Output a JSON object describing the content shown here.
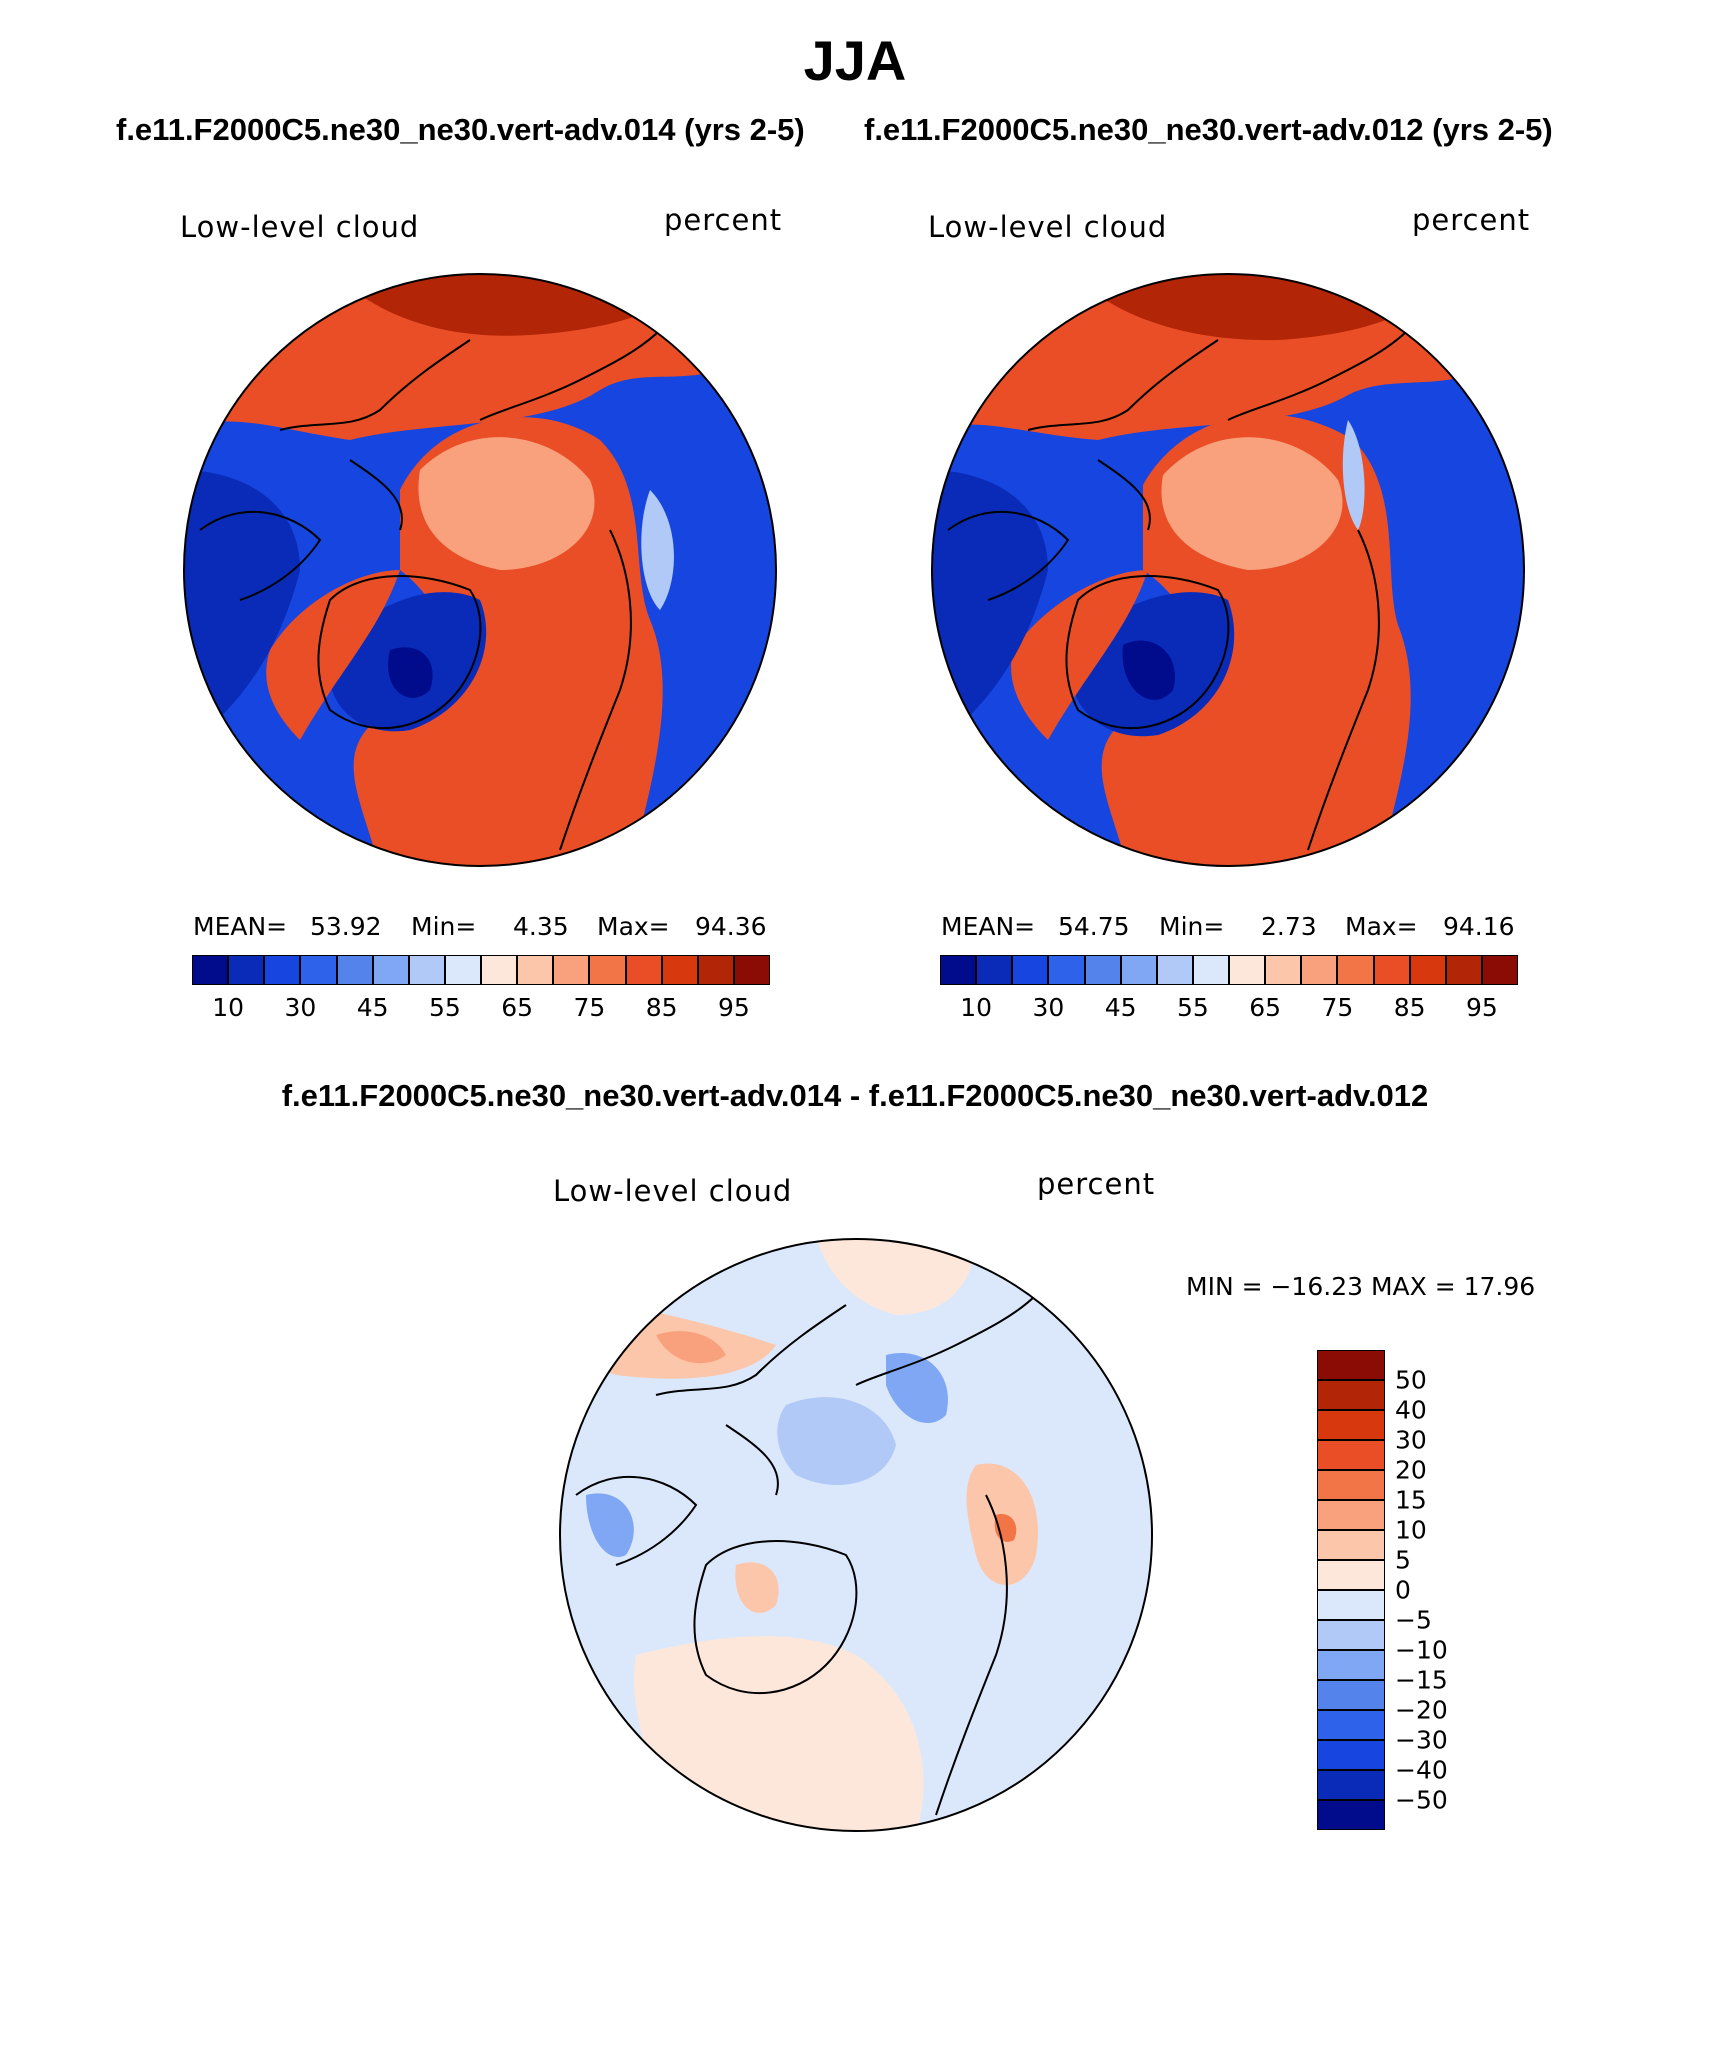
{
  "figure": {
    "season": "JJA",
    "panel_header_left": "f.e11.F2000C5.ne30_ne30.vert-adv.014 (yrs 2-5)",
    "panel_header_right": "f.e11.F2000C5.ne30_ne30.vert-adv.012 (yrs 2-5)",
    "diff_header": "f.e11.F2000C5.ne30_ne30.vert-adv.014 - f.e11.F2000C5.ne30_ne30.vert-adv.012"
  },
  "chart_data": [
    {
      "type": "heatmap",
      "projection": "north-polar-stereographic",
      "variable": "Low-level cloud",
      "units": "percent",
      "case": "f.e11.F2000C5.ne30_ne30.vert-adv.014 (yrs 2-5)",
      "stats": {
        "mean_label": "MEAN=",
        "mean": "53.92",
        "min_label": "Min=",
        "min": "4.35",
        "max_label": "Max=",
        "max": "94.36"
      },
      "colorbar_ticks": [
        "10",
        "30",
        "45",
        "55",
        "65",
        "75",
        "85",
        "95"
      ],
      "colorbar_colors": [
        "#000c8c",
        "#0a2bb8",
        "#1646df",
        "#2f62ea",
        "#5583ec",
        "#80a7f3",
        "#b0c9f6",
        "#dbe8fb",
        "#fde7da",
        "#fcc6aa",
        "#f9a17c",
        "#f27548",
        "#ea4e27",
        "#d8380e",
        "#b22507",
        "#8a0c05"
      ]
    },
    {
      "type": "heatmap",
      "projection": "north-polar-stereographic",
      "variable": "Low-level cloud",
      "units": "percent",
      "case": "f.e11.F2000C5.ne30_ne30.vert-adv.012 (yrs 2-5)",
      "stats": {
        "mean_label": "MEAN=",
        "mean": "54.75",
        "min_label": "Min=",
        "min": "2.73",
        "max_label": "Max=",
        "max": "94.16"
      },
      "colorbar_ticks": [
        "10",
        "30",
        "45",
        "55",
        "65",
        "75",
        "85",
        "95"
      ],
      "colorbar_colors": [
        "#000c8c",
        "#0a2bb8",
        "#1646df",
        "#2f62ea",
        "#5583ec",
        "#80a7f3",
        "#b0c9f6",
        "#dbe8fb",
        "#fde7da",
        "#fcc6aa",
        "#f9a17c",
        "#f27548",
        "#ea4e27",
        "#d8380e",
        "#b22507",
        "#8a0c05"
      ]
    },
    {
      "type": "heatmap",
      "projection": "north-polar-stereographic",
      "variable": "Low-level cloud",
      "units": "percent",
      "case": "f.e11.F2000C5.ne30_ne30.vert-adv.014 - f.e11.F2000C5.ne30_ne30.vert-adv.012",
      "stats_text": "MIN = −16.23 MAX =   17.96",
      "min": -16.23,
      "max": 17.96,
      "colorbar_ticks": [
        "50",
        "40",
        "30",
        "20",
        "15",
        "10",
        "5",
        "0",
        "−5",
        "−10",
        "−15",
        "−20",
        "−30",
        "−40",
        "−50"
      ],
      "colorbar_colors": [
        "#8a0c05",
        "#b22507",
        "#d8380e",
        "#ea4e27",
        "#f27548",
        "#f9a17c",
        "#fcc6aa",
        "#fde7da",
        "#dbe8fb",
        "#b0c9f6",
        "#80a7f3",
        "#5583ec",
        "#2f62ea",
        "#1646df",
        "#0a2bb8",
        "#000c8c"
      ]
    }
  ]
}
